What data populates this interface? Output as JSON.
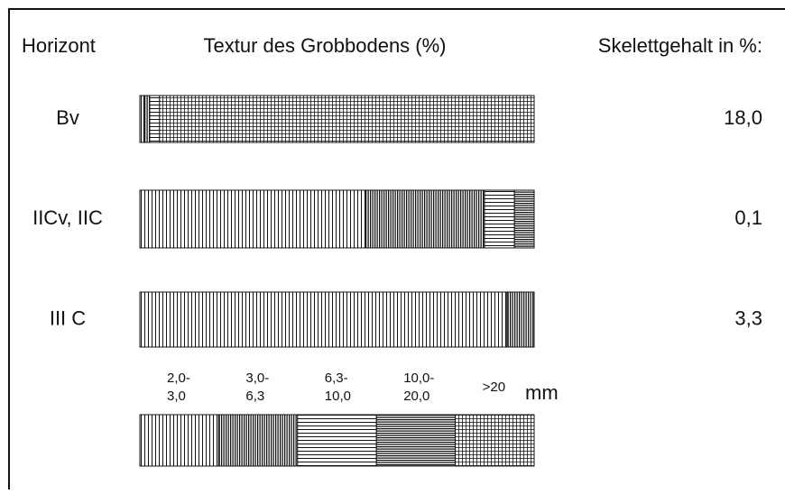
{
  "chart_data": {
    "type": "stacked-bar-horizontal",
    "header": {
      "row_label": "Horizont",
      "bar_title": "Textur des Grobbodens (%)",
      "value_title": "Skelettgehalt in %:"
    },
    "categories": [
      "Bv",
      "IICv, IIC",
      "III C"
    ],
    "xlim": [
      0,
      100
    ],
    "series": [
      {
        "name": "2,0-3,0",
        "pattern": "v-thin",
        "color": "#111111",
        "values": [
          1,
          57.2,
          93.1
        ]
      },
      {
        "name": "3,0-6,3",
        "pattern": "v-dense",
        "color": "#111111",
        "values": [
          1.5,
          30.2,
          6.9
        ]
      },
      {
        "name": "6,3-10,0",
        "pattern": "h-thin",
        "color": "#111111",
        "values": [
          2.5,
          7.6,
          0
        ]
      },
      {
        "name": "10,0-20,0",
        "pattern": "h-dense",
        "color": "#111111",
        "values": [
          0,
          5.0,
          0
        ]
      },
      {
        "name": ">20",
        "pattern": "grid",
        "color": "#111111",
        "values": [
          95,
          0,
          0
        ]
      }
    ],
    "legend_unit": "mm",
    "skeleton": {
      "values": [
        18.0,
        0.1,
        3.3
      ],
      "value_labels": [
        "18,0",
        "0,1",
        "3,3"
      ]
    }
  }
}
